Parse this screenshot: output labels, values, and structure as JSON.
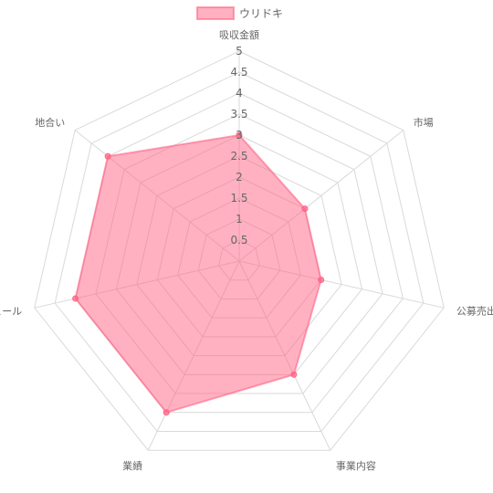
{
  "chart_data": {
    "type": "radar",
    "title": "",
    "legend": {
      "position": "top"
    },
    "categories": [
      "吸収金額",
      "市場",
      "公募売出比",
      "事業内容",
      "業績",
      "スケジュール",
      "地合い"
    ],
    "series": [
      {
        "name": "ウリドキ",
        "values": [
          3,
          2,
          2,
          3,
          4,
          4,
          4
        ]
      }
    ],
    "ylim": [
      0,
      5
    ],
    "ticks": [
      "0.5",
      "1",
      "1.5",
      "2",
      "2.5",
      "3",
      "3.5",
      "4",
      "4.5",
      "5"
    ],
    "grid": true,
    "colors": {
      "fill": "#ff6384",
      "stroke": "#ff6384",
      "grid": "#d9d9d9",
      "text": "#666666"
    }
  }
}
